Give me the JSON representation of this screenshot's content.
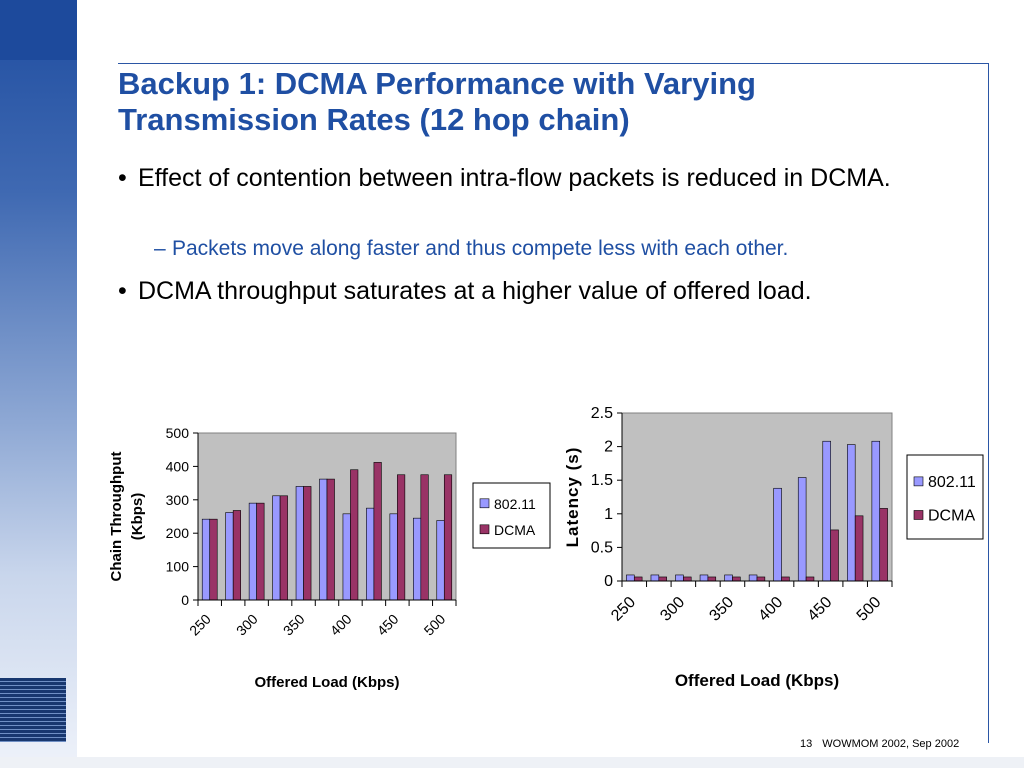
{
  "slide": {
    "title_line1": "Backup 1: DCMA Performance with Varying",
    "title_line2": "Transmission Rates (12 hop chain)",
    "bullet1": "Effect of contention between intra-flow packets is reduced in DCMA.",
    "sub_bullet1": "Packets move along faster and thus compete less with each other.",
    "bullet2": "DCMA throughput saturates at a higher value of offered load.",
    "bullet_glyph": "•",
    "dash_glyph": "–",
    "footer_page": "13",
    "footer_text": "WOWMOM 2002, Sep 2002"
  },
  "colors": {
    "accent": "#1f4fa3",
    "series_80211": "#9999ff",
    "series_dcma": "#993366",
    "plot_bg": "#c0c0c0"
  },
  "chart_data": [
    {
      "type": "bar",
      "title": "",
      "xlabel": "Offered Load (Kbps)",
      "ylabel": "Chain Throughput (Kbps)",
      "ylim": [
        0,
        500
      ],
      "yticks": [
        0,
        100,
        200,
        300,
        400,
        500
      ],
      "categories": [
        "250",
        "",
        "300",
        "",
        "350",
        "",
        "400",
        "",
        "450",
        "",
        "500"
      ],
      "series": [
        {
          "name": "802.11",
          "values": [
            242,
            262,
            290,
            312,
            340,
            362,
            258,
            275,
            258,
            245,
            238
          ]
        },
        {
          "name": "DCMA",
          "values": [
            242,
            268,
            290,
            312,
            340,
            362,
            390,
            412,
            375,
            375,
            375
          ]
        }
      ],
      "legend": "right",
      "grid": false
    },
    {
      "type": "bar",
      "title": "",
      "xlabel": "Offered Load (Kbps)",
      "ylabel": "Latency (s)",
      "ylim": [
        0,
        2.5
      ],
      "yticks": [
        "0",
        "0.5",
        "1",
        "1.5",
        "2",
        "2.5"
      ],
      "categories": [
        "250",
        "",
        "300",
        "",
        "350",
        "",
        "400",
        "",
        "450",
        "",
        "500"
      ],
      "series": [
        {
          "name": "802.11",
          "values": [
            0.09,
            0.09,
            0.09,
            0.09,
            0.09,
            0.09,
            1.38,
            1.54,
            2.08,
            2.03,
            2.08
          ]
        },
        {
          "name": "DCMA",
          "values": [
            0.06,
            0.06,
            0.06,
            0.06,
            0.06,
            0.06,
            0.06,
            0.06,
            0.76,
            0.97,
            1.08
          ]
        }
      ],
      "legend": "right",
      "grid": false
    }
  ]
}
